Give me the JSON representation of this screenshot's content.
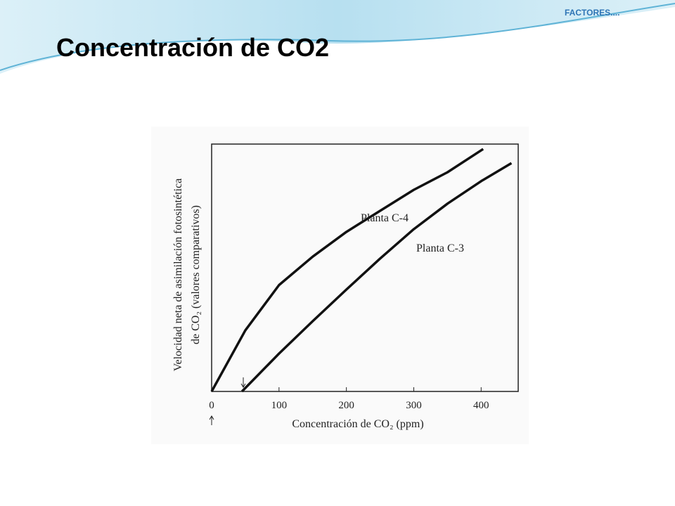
{
  "slide": {
    "header": "FACTORES....",
    "title": "Concentración de CO2"
  },
  "chart_data": {
    "type": "line",
    "x_label": "Concentración de CO₂ (ppm)",
    "y_label": [
      "Velocidad neta de asimilación fotosintética",
      "de CO₂ (valores comparativos)"
    ],
    "series": [
      {
        "name": "Planta C-4",
        "color": "#111111",
        "x": [
          0,
          50,
          100,
          150,
          200,
          250,
          300,
          350,
          403
        ],
        "values": [
          0,
          24.7,
          43,
          54.5,
          64.5,
          73,
          81.5,
          88.6,
          98
        ]
      },
      {
        "name": "Planta C-3",
        "color": "#111111",
        "x": [
          45,
          100,
          150,
          200,
          250,
          300,
          350,
          400,
          445
        ],
        "values": [
          0,
          15.3,
          28.4,
          41.2,
          53.7,
          65.6,
          75.9,
          85,
          92.3
        ]
      }
    ],
    "xlim": [
      0,
      455
    ],
    "xticks": [
      0,
      100,
      200,
      300,
      400
    ],
    "ylim": [
      0,
      100
    ],
    "grid": false
  }
}
